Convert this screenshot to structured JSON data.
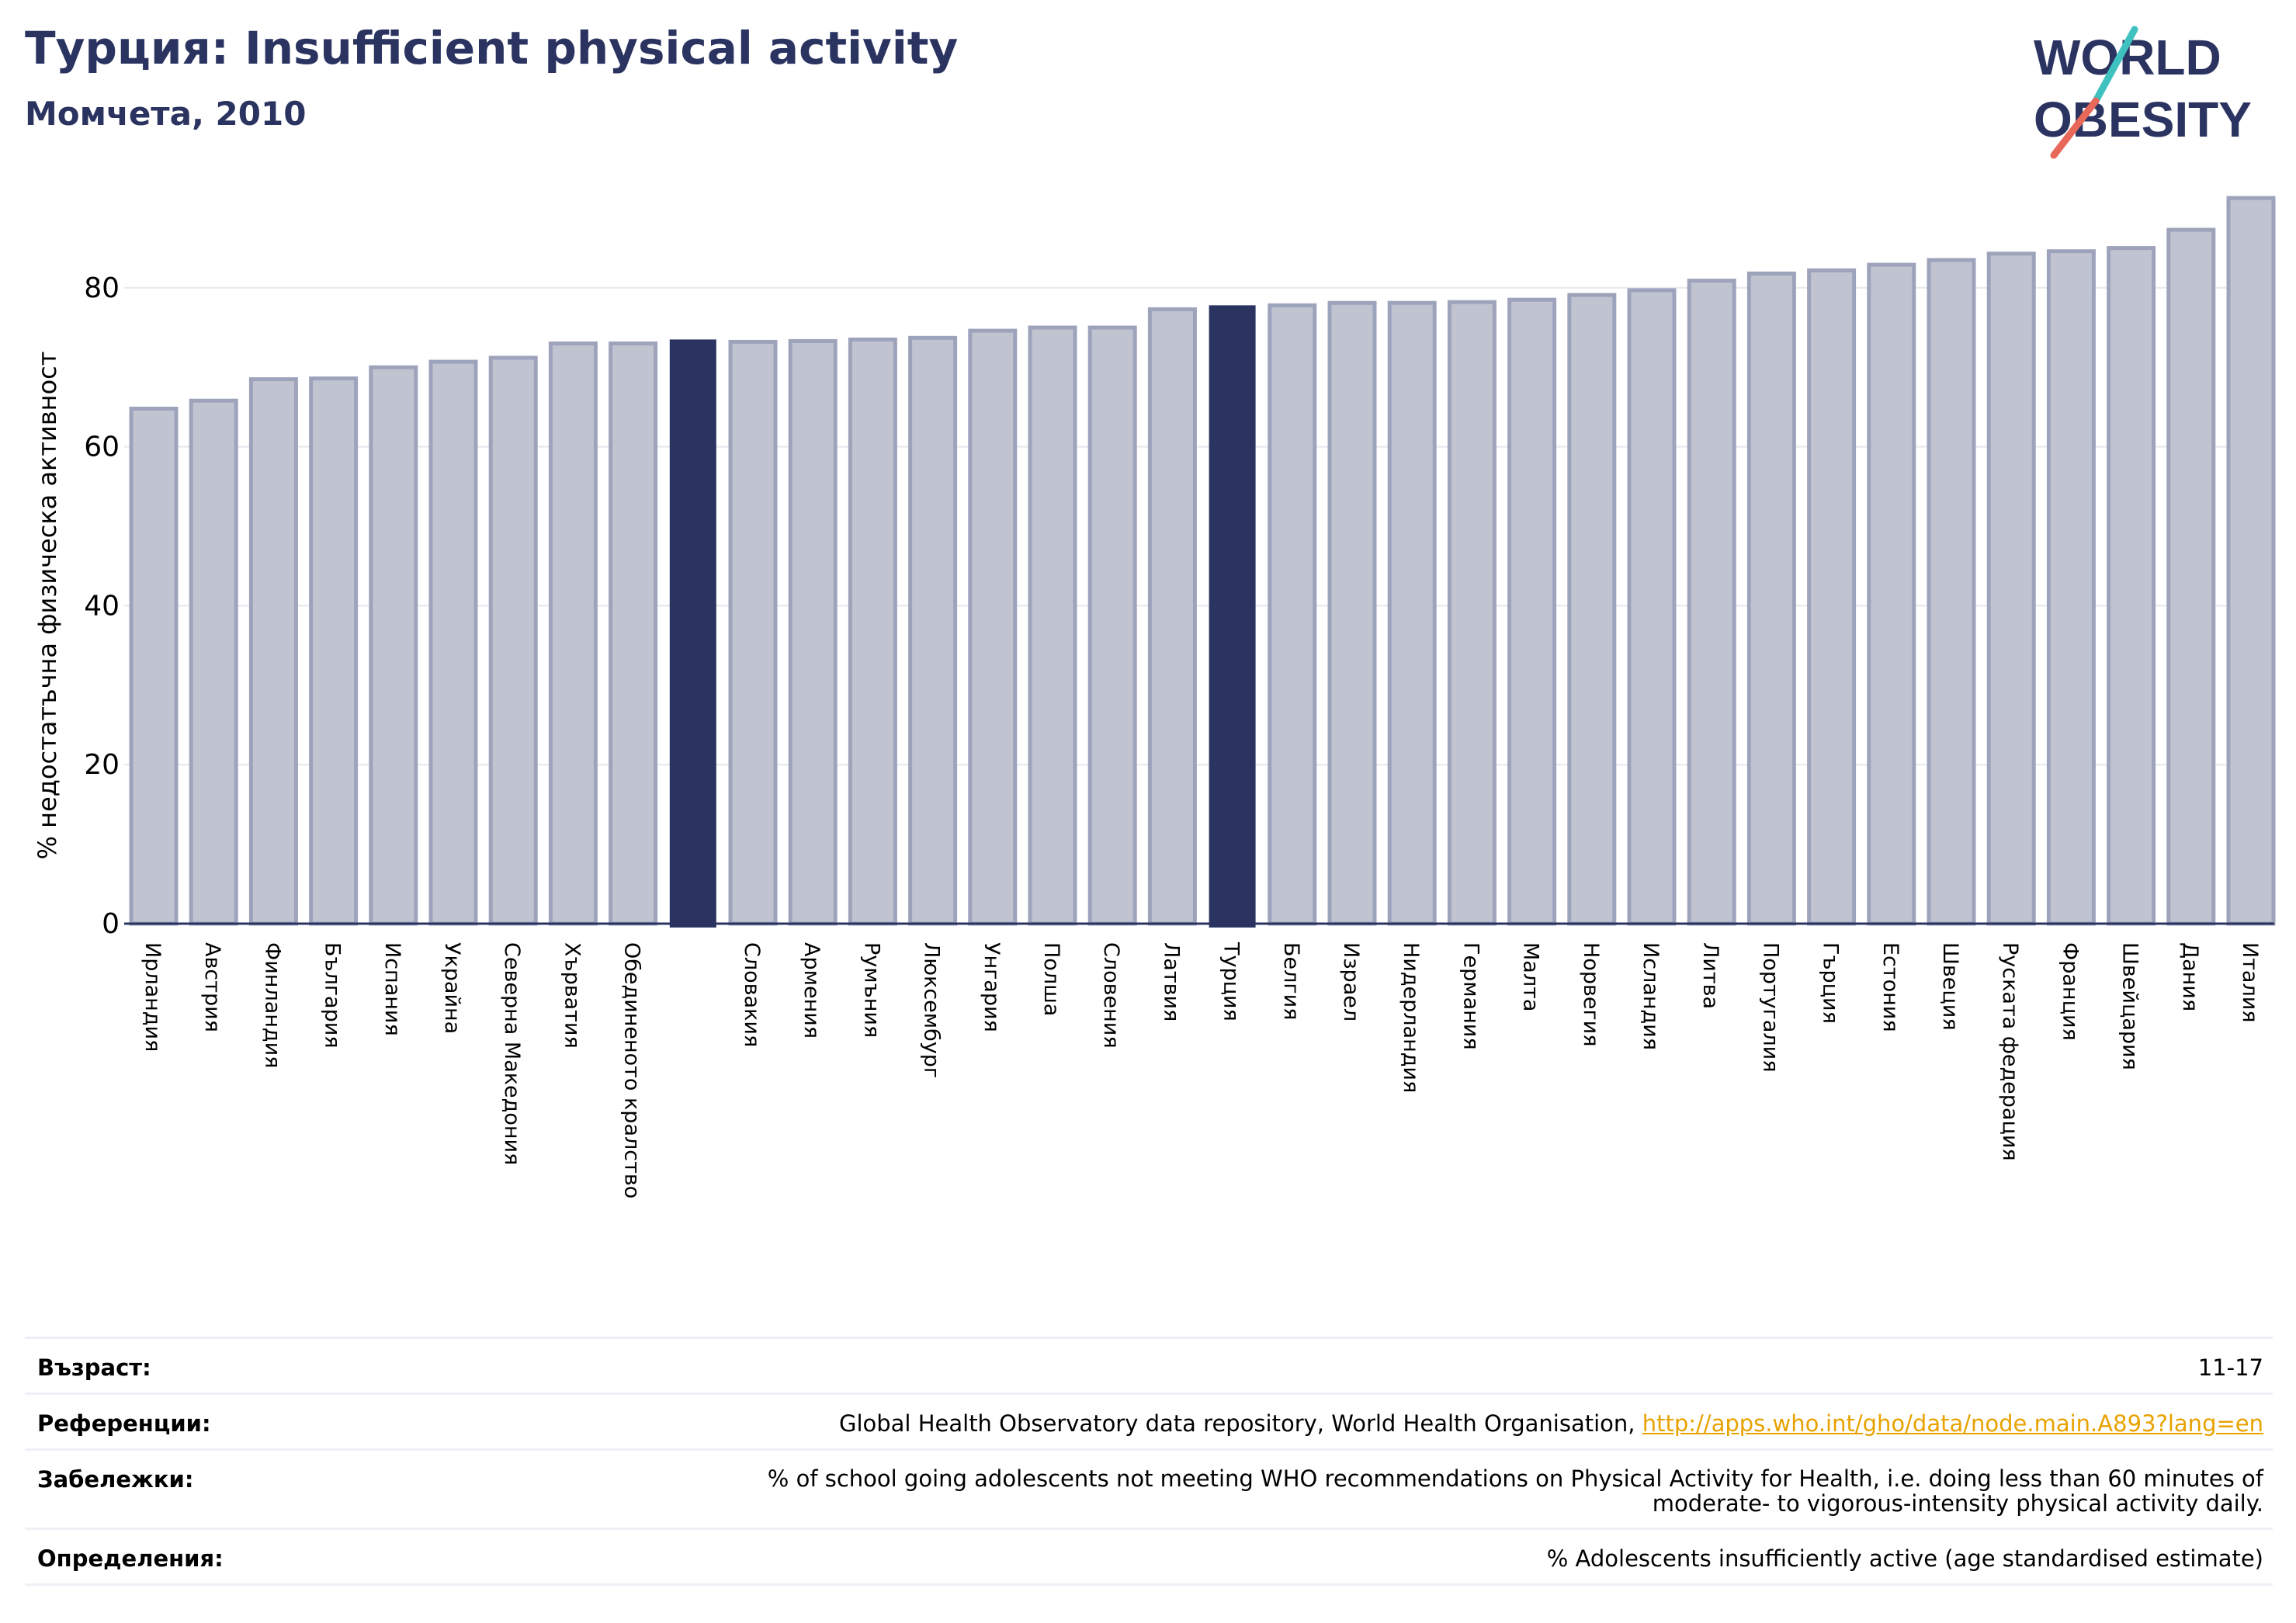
{
  "header": {
    "title": "Турция: Insufficient physical activity",
    "subtitle": "Момчета, 2010"
  },
  "logo": {
    "line1": "WORLD",
    "line2": "OBESITY",
    "icon": "world-obesity-logo"
  },
  "colors": {
    "bar": "#c0c3d0",
    "bar_edge": "#9ea3bc",
    "highlight": "#2b3461",
    "title": "#2b3461",
    "link": "#e8a200"
  },
  "chart_data": {
    "type": "bar",
    "ylabel": "% недостатъчна физическа активност",
    "ylim": [
      0,
      93
    ],
    "yticks": [
      0,
      20,
      40,
      60,
      80
    ],
    "grid": true,
    "categories": [
      "Ирландия",
      "Австрия",
      "Финландия",
      "България",
      "Испания",
      "Украйна",
      "Северна Македония",
      "Хърватия",
      "Обединеното кралство",
      "",
      "Словакия",
      "Армения",
      "Румъния",
      "Люксембург",
      "Унгария",
      "Полша",
      "Словения",
      "Латвия",
      "Турция",
      "Белгия",
      "Израел",
      "Нидерландия",
      "Германия",
      "Малта",
      "Норвегия",
      "Исландия",
      "Литва",
      "Португалия",
      "Гърция",
      "Естония",
      "Швеция",
      "Руската федерация",
      "Франция",
      "Швейцария",
      "Дания",
      "Италия"
    ],
    "values": [
      64.8,
      65.8,
      68.5,
      68.6,
      70.0,
      70.7,
      71.2,
      73.0,
      73.0,
      73.4,
      73.2,
      73.3,
      73.5,
      73.7,
      74.6,
      75.0,
      75.0,
      77.3,
      77.7,
      77.8,
      78.1,
      78.1,
      78.2,
      78.5,
      79.1,
      79.7,
      80.9,
      81.8,
      82.2,
      82.9,
      83.5,
      84.3,
      84.6,
      85.0,
      87.3,
      91.3
    ],
    "highlight_indices": [
      9,
      18
    ]
  },
  "meta": {
    "age_label": "Възраст:",
    "age_value": "11-17",
    "refs_label": "Референции:",
    "refs_text": "Global Health Observatory data repository, World Health Organisation, ",
    "refs_link": "http://apps.who.int/gho/data/node.main.A893?lang=en",
    "notes_label": "Забележки:",
    "notes_line1": "% of school going adolescents not meeting WHO recommendations on Physical Activity for Health, i.e. doing less than 60 minutes of",
    "notes_line2": "moderate- to vigorous-intensity physical activity daily.",
    "defs_label": "Определения:",
    "defs_value": "% Adolescents insufficiently active (age standardised estimate)"
  }
}
